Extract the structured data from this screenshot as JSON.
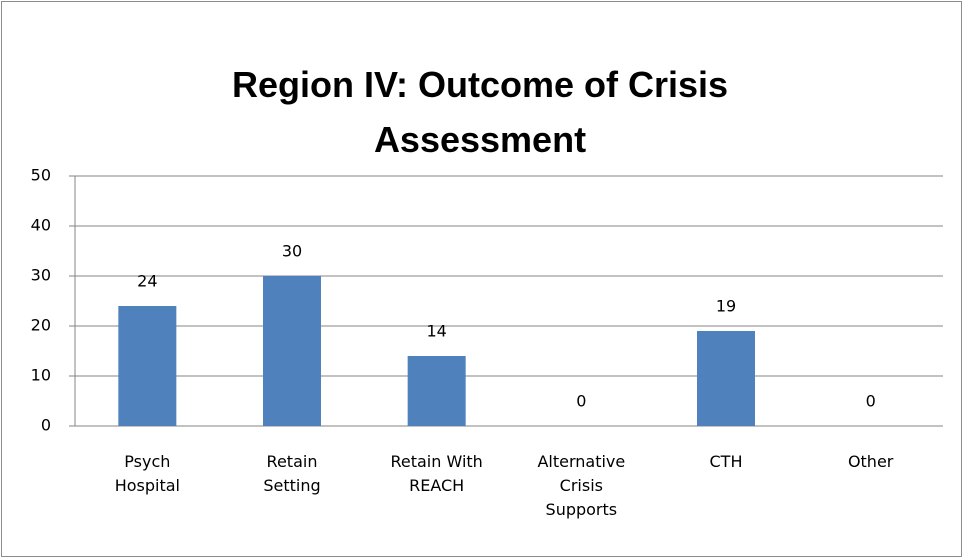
{
  "chart_data": {
    "type": "bar",
    "title": "Region IV: Outcome of Crisis Assessment",
    "categories": [
      "Psych Hospital",
      "Retain Setting",
      "Retain With REACH",
      "Alternative Crisis Supports",
      "CTH",
      "Other"
    ],
    "values": [
      24,
      30,
      14,
      0,
      19,
      0
    ],
    "color": "#4f81bd",
    "ylim": [
      0,
      50
    ],
    "yticks": [
      0,
      10,
      20,
      30,
      40,
      50
    ],
    "grid": true
  }
}
